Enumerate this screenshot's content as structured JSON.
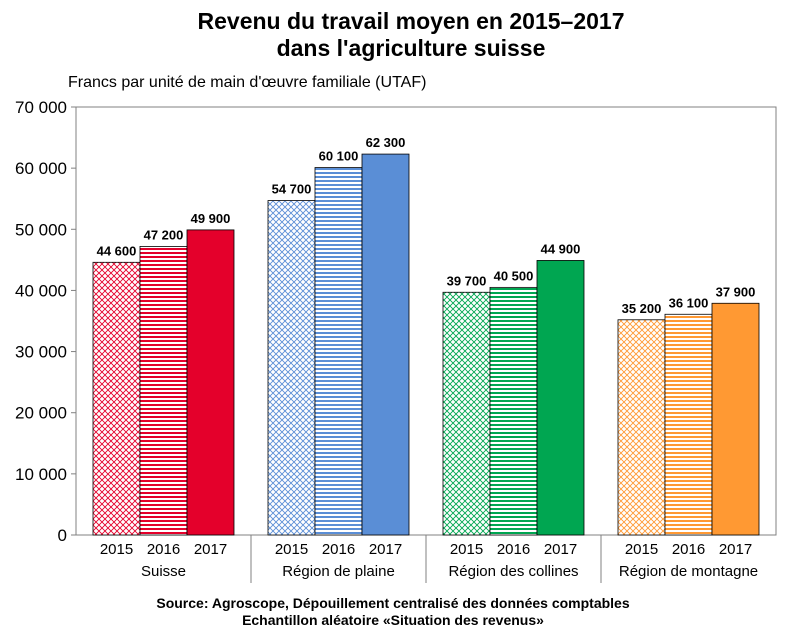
{
  "chart_data": {
    "type": "bar",
    "title_lines": [
      "Revenu du travail moyen en 2015–2017",
      "dans l'agriculture suisse"
    ],
    "ylabel": "Francs par unité de main d'œuvre familiale (UTAF)",
    "xlabel": "",
    "ylim": [
      0,
      70000
    ],
    "yticks": [
      0,
      10000,
      20000,
      30000,
      40000,
      50000,
      60000,
      70000
    ],
    "ytick_labels": [
      "0",
      "10 000",
      "20 000",
      "30 000",
      "40 000",
      "50 000",
      "60 000",
      "70 000"
    ],
    "grid": false,
    "legend": "none",
    "years": [
      "2015",
      "2016",
      "2017"
    ],
    "groups": [
      {
        "name": "Suisse",
        "color": "#e4002b",
        "values": [
          44600,
          47200,
          49900
        ],
        "labels": [
          "44 600",
          "47 200",
          "49 900"
        ]
      },
      {
        "name": "Région de plaine",
        "color": "#5a8ed6",
        "values": [
          54700,
          60100,
          62300
        ],
        "labels": [
          "54 700",
          "60 100",
          "62 300"
        ]
      },
      {
        "name": "Région des collines",
        "color": "#00a651",
        "values": [
          39700,
          40500,
          44900
        ],
        "labels": [
          "39 700",
          "40 500",
          "44 900"
        ]
      },
      {
        "name": "Région de montagne",
        "color": "#ff9933",
        "values": [
          35200,
          36100,
          37900
        ],
        "labels": [
          "35 200",
          "36 100",
          "37 900"
        ]
      }
    ],
    "patterns": [
      "crosshatch",
      "horizontal-stripes",
      "solid"
    ]
  },
  "source": {
    "line1": "Source: Agroscope, Dépouillement centralisé des données comptables",
    "line2": "Echantillon aléatoire «Situation des revenus»"
  }
}
